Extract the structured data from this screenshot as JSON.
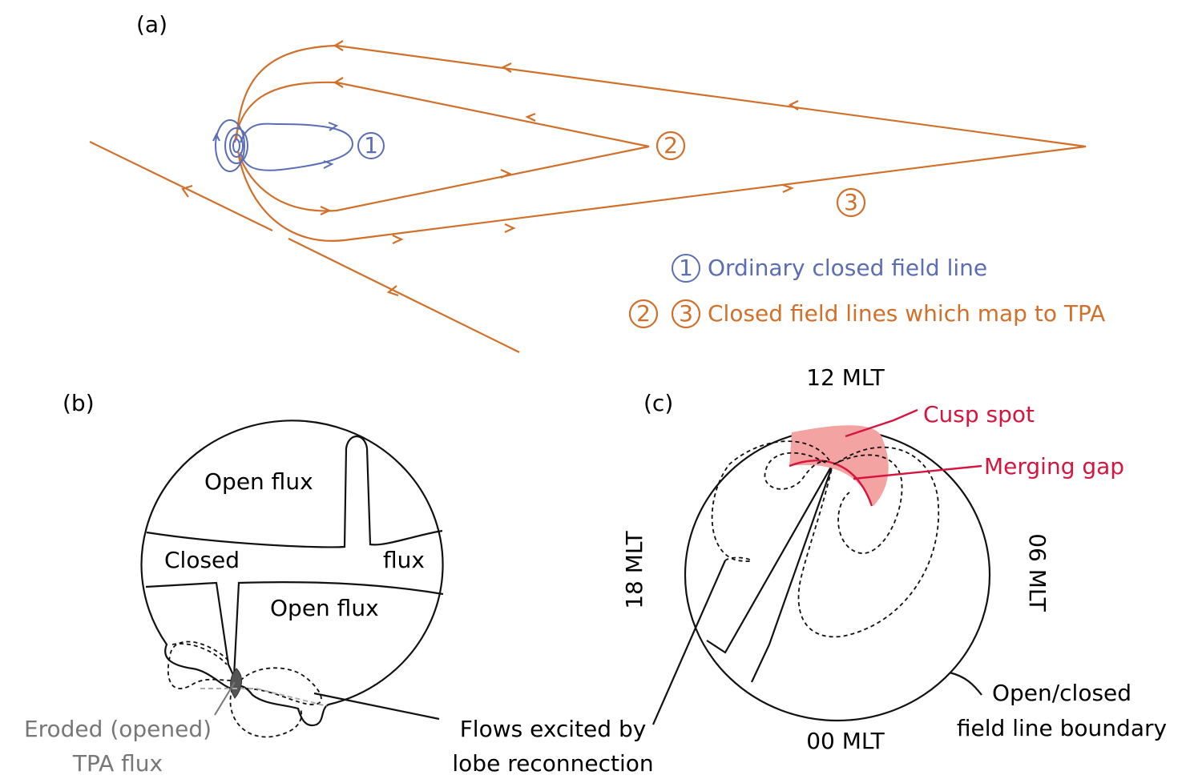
{
  "panel_a": {
    "label": "(a)",
    "markers": [
      "1",
      "2",
      "3"
    ],
    "legend": [
      {
        "markers": [
          "1"
        ],
        "text": "Ordinary closed field line"
      },
      {
        "markers": [
          "2",
          "3"
        ],
        "text": "Closed field lines which map to TPA"
      }
    ]
  },
  "panel_b": {
    "label": "(b)",
    "regions": [
      "Open flux",
      "Closed",
      "flux",
      "Open flux"
    ],
    "eroded": [
      "Eroded (opened)",
      "TPA flux"
    ],
    "flows": [
      "Flows excited by",
      "lobe reconnection"
    ]
  },
  "panel_c": {
    "label": "(c)",
    "mlt": {
      "top": "12 MLT",
      "left": "18 MLT",
      "right": "06 MLT",
      "bottom": "00 MLT"
    },
    "cusp": "Cusp spot",
    "gap": "Merging gap",
    "boundary": [
      "Open/closed",
      "field line boundary"
    ]
  }
}
